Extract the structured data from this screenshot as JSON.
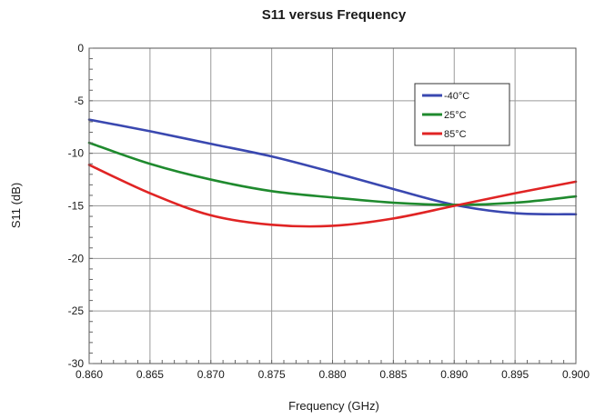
{
  "chart_data": {
    "type": "line",
    "title": "S11 versus Frequency",
    "xlabel": "Frequency (GHz)",
    "ylabel": "S11 (dB)",
    "xlim": [
      0.86,
      0.9
    ],
    "ylim": [
      -30,
      0
    ],
    "x_ticks": [
      0.86,
      0.865,
      0.87,
      0.875,
      0.88,
      0.885,
      0.89,
      0.895,
      0.9
    ],
    "x_tick_labels": [
      "0.860",
      "0.865",
      "0.870",
      "0.875",
      "0.880",
      "0.885",
      "0.890",
      "0.895",
      "0.900"
    ],
    "y_ticks": [
      0,
      -5,
      -10,
      -15,
      -20,
      -25,
      -30
    ],
    "y_tick_labels": [
      "0",
      "-5",
      "-10",
      "-15",
      "-20",
      "-25",
      "-30"
    ],
    "grid": true,
    "legend_position": "top-right",
    "x": [
      0.86,
      0.865,
      0.87,
      0.875,
      0.88,
      0.885,
      0.89,
      0.895,
      0.9
    ],
    "series": [
      {
        "name": "-40°C",
        "color": "#3a48b0",
        "values": [
          -6.8,
          -7.9,
          -9.1,
          -10.3,
          -11.8,
          -13.4,
          -14.9,
          -15.7,
          -15.8
        ]
      },
      {
        "name": "25°C",
        "color": "#1f8a2e",
        "values": [
          -9.0,
          -11.0,
          -12.5,
          -13.6,
          -14.2,
          -14.7,
          -14.9,
          -14.7,
          -14.1
        ]
      },
      {
        "name": "85°C",
        "color": "#e02424",
        "values": [
          -11.1,
          -13.8,
          -15.9,
          -16.8,
          -16.9,
          -16.2,
          -15.0,
          -13.8,
          -12.7
        ]
      }
    ]
  }
}
